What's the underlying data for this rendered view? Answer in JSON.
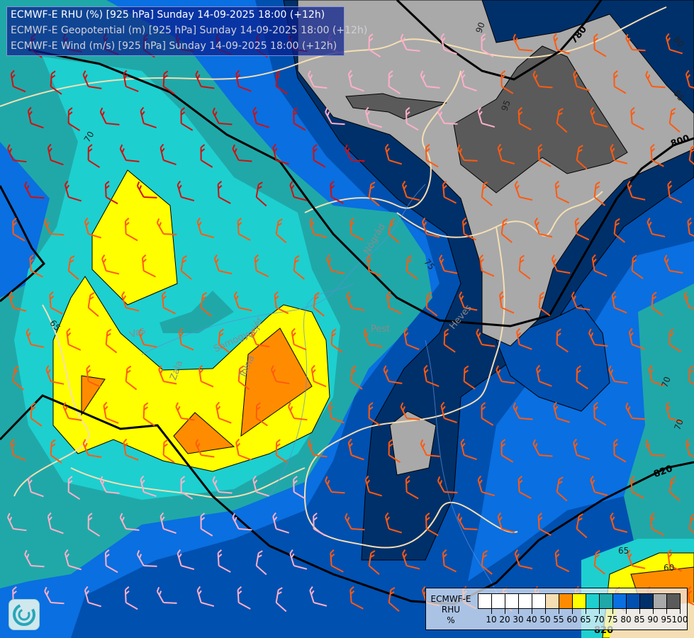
{
  "header": {
    "lines": [
      "ECMWF-E RHU (%) [925 hPa] Sunday 14-09-2025 18:00 (+12h)",
      "ECMWF-E Geopotential (m) [925 hPa] Sunday 14-09-2025 18:00 (+12h)",
      "ECMWF-E Wind (m/s) [925 hPa] Sunday 14-09-2025 18:00 (+12h)"
    ]
  },
  "legend": {
    "title_lines": [
      "ECMWF-E",
      "RHU",
      "%"
    ],
    "ticks": [
      "10",
      "20",
      "30",
      "40",
      "50",
      "55",
      "60",
      "65",
      "70",
      "75",
      "80",
      "85",
      "90",
      "95",
      "100"
    ],
    "colors": [
      "#ffffff",
      "#ffffff",
      "#ffffff",
      "#ffffff",
      "#ffffff",
      "#f5deb3",
      "#ff8c00",
      "#ffff00",
      "#1ecfcf",
      "#20a8a8",
      "#0a6fe0",
      "#0050b0",
      "#00306a",
      "#a9a9a9",
      "#5a5a5a"
    ]
  },
  "geopotential_labels": [
    "780",
    "800",
    "820",
    "820"
  ],
  "rhu_labels": [
    "90",
    "95",
    "85",
    "80",
    "70",
    "65",
    "75",
    "70",
    "70",
    "65",
    "60"
  ],
  "places": [
    "Vas",
    "Zala",
    "Somogy",
    "Fejér",
    "Tolna",
    "Pest",
    "Nógrád",
    "Heves"
  ],
  "logo": "ECMWF"
}
